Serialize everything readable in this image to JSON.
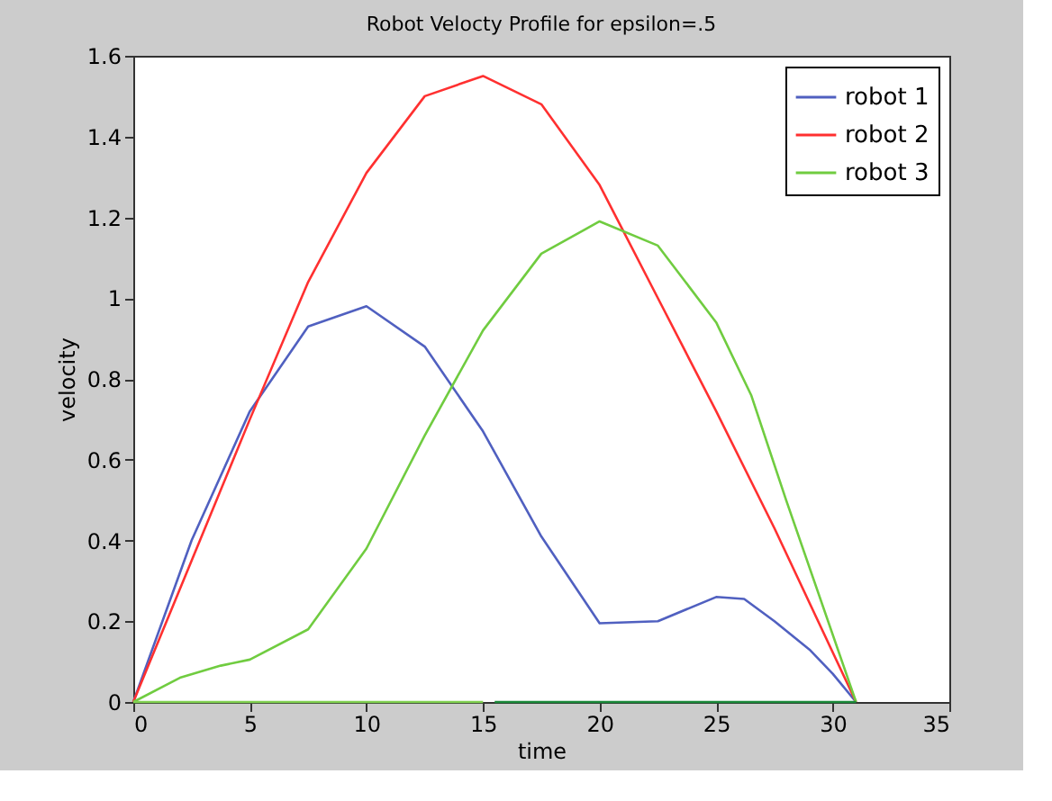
{
  "chart_data": {
    "type": "line",
    "title": "Robot Velocty Profile for epsilon=.5",
    "xlabel": "time",
    "ylabel": "velocity",
    "xlim": [
      0,
      35
    ],
    "xticks": [
      0,
      5,
      10,
      15,
      20,
      25,
      30,
      35
    ],
    "ylim": [
      0,
      1.6
    ],
    "yticks": [
      0,
      0.2,
      0.4,
      0.6,
      0.8,
      1,
      1.2,
      1.4,
      1.6
    ],
    "grid": false,
    "legend": "top right",
    "marker": "none",
    "line_style": "solid",
    "series": [
      {
        "name": "robot 1",
        "color": "#5060c0",
        "x": [
          0,
          2.5,
          5,
          7.5,
          10,
          12.5,
          15,
          17.5,
          20,
          22.5,
          25,
          26.2,
          27.5,
          29,
          30,
          31
        ],
        "values": [
          0,
          0.4,
          0.72,
          0.93,
          0.98,
          0.88,
          0.67,
          0.41,
          0.195,
          0.2,
          0.26,
          0.255,
          0.2,
          0.13,
          0.07,
          0
        ]
      },
      {
        "name": "robot 2",
        "color": "#ff3030",
        "x": [
          0,
          2.5,
          5,
          7.5,
          10,
          12.5,
          15,
          17.5,
          20,
          22.5,
          25,
          27.5,
          31
        ],
        "values": [
          0,
          0.35,
          0.7,
          1.04,
          1.31,
          1.5,
          1.55,
          1.48,
          1.28,
          1.0,
          0.72,
          0.43,
          0
        ]
      },
      {
        "name": "robot 3",
        "color": "#70cc40",
        "x": [
          0,
          2,
          3.75,
          5,
          7.5,
          10,
          12.5,
          15,
          17.5,
          20,
          22.5,
          25,
          26.5,
          28,
          31
        ],
        "values": [
          0,
          0.06,
          0.09,
          0.105,
          0.18,
          0.38,
          0.66,
          0.92,
          1.11,
          1.19,
          1.13,
          0.94,
          0.76,
          0.5,
          0
        ]
      },
      {
        "color": "#80d050",
        "x": [
          0,
          15
        ],
        "values": [
          0,
          0
        ]
      },
      {
        "color": "#1a8a3a",
        "x": [
          15.5,
          31
        ],
        "values": [
          0,
          0
        ]
      }
    ]
  }
}
